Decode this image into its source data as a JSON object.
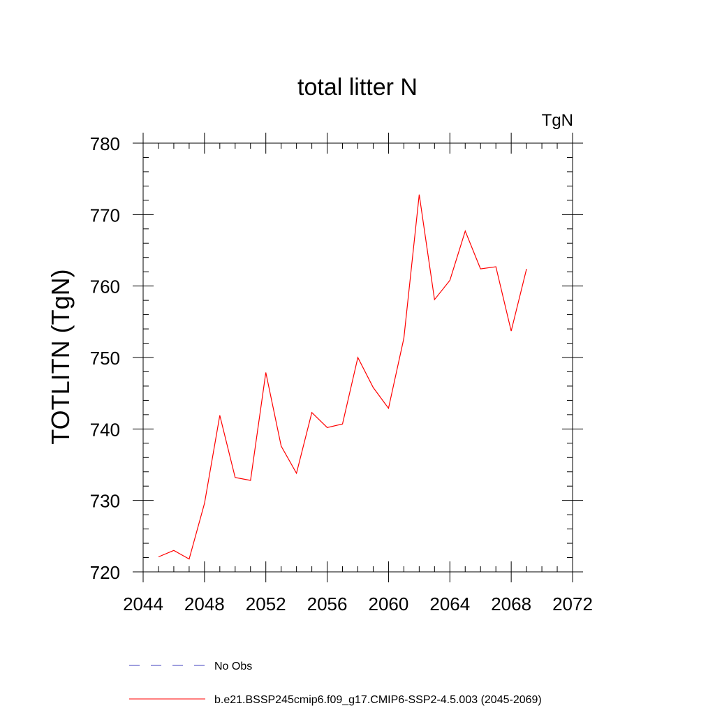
{
  "chart_data": {
    "type": "line",
    "title": "total litter N",
    "units_label": "TgN",
    "ylabel": "TOTLITN  (TgN)",
    "xlabel": "",
    "xlim": [
      2044,
      2072
    ],
    "ylim": [
      720,
      780
    ],
    "xticks": [
      2044,
      2048,
      2052,
      2056,
      2060,
      2064,
      2068,
      2072
    ],
    "yticks": [
      720,
      730,
      740,
      750,
      760,
      770,
      780
    ],
    "x_minor_step": 1,
    "y_minor_step": 2,
    "grid": false,
    "legend_position": "bottom-left",
    "series": [
      {
        "name": "No Obs",
        "color": "#3f3fbf",
        "dash": "dashed",
        "x": [],
        "y": []
      },
      {
        "name": "b.e21.BSSP245cmip6.f09_g17.CMIP6-SSP2-4.5.003 (2045-2069)",
        "color": "#ff0000",
        "dash": "solid",
        "x": [
          2045,
          2046,
          2047,
          2048,
          2049,
          2050,
          2051,
          2052,
          2053,
          2054,
          2055,
          2056,
          2057,
          2058,
          2059,
          2060,
          2061,
          2062,
          2063,
          2064,
          2065,
          2066,
          2067,
          2068,
          2069
        ],
        "y": [
          722.1,
          723.0,
          721.8,
          729.6,
          741.9,
          733.2,
          732.8,
          747.9,
          737.6,
          733.8,
          742.3,
          740.2,
          740.7,
          750.0,
          745.8,
          742.9,
          752.7,
          772.8,
          758.1,
          760.8,
          767.7,
          762.4,
          762.7,
          753.7,
          762.4
        ]
      }
    ]
  }
}
